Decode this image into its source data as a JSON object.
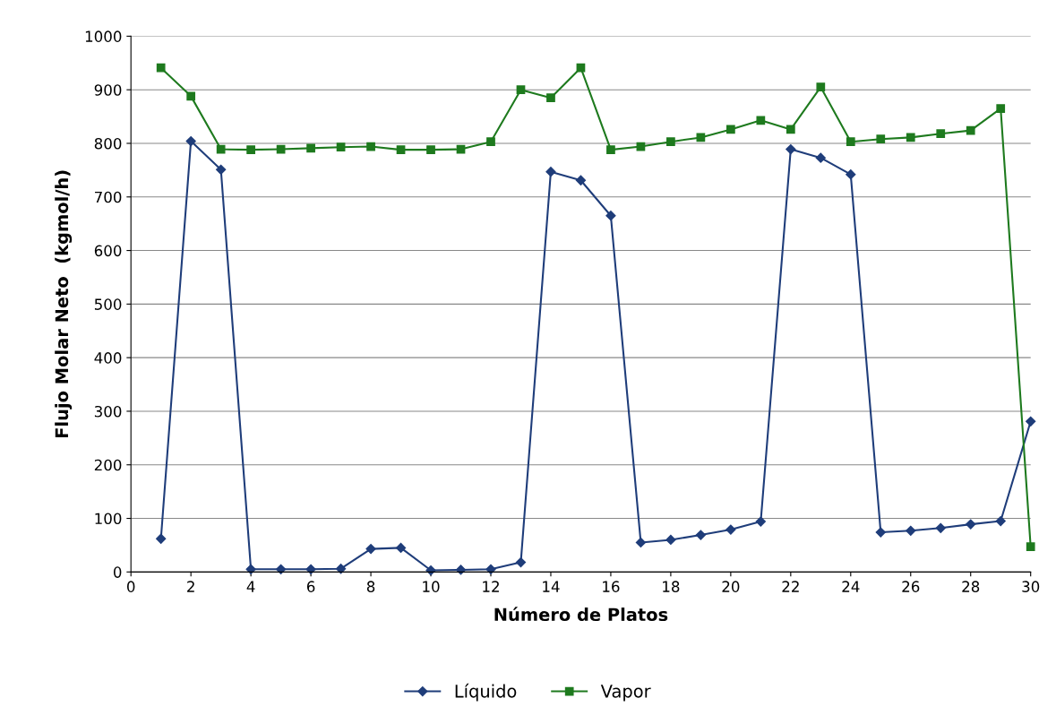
{
  "chart_data": {
    "type": "line",
    "xlabel": "Número de Platos",
    "ylabel": "Flujo Molar Neto  (kgmol/h)",
    "xlim": [
      0,
      30
    ],
    "xticks": [
      0,
      2,
      4,
      6,
      8,
      10,
      12,
      14,
      16,
      18,
      20,
      22,
      24,
      26,
      28,
      30
    ],
    "ylim": [
      0,
      1000
    ],
    "yticks": [
      0,
      100,
      200,
      300,
      400,
      500,
      600,
      700,
      800,
      900,
      1000
    ],
    "grid": "y",
    "legend": "bottom",
    "line_style": "solid",
    "x": [
      1,
      2,
      3,
      4,
      5,
      6,
      7,
      8,
      9,
      10,
      11,
      12,
      13,
      14,
      15,
      16,
      17,
      18,
      19,
      20,
      21,
      22,
      23,
      24,
      25,
      26,
      27,
      28,
      29,
      30
    ],
    "series": [
      {
        "name": "Líquido",
        "color": "#1f3d7a",
        "marker": "diamond",
        "values": [
          62,
          804,
          751,
          5,
          5,
          5,
          6,
          43,
          45,
          3,
          4,
          5,
          18,
          747,
          731,
          665,
          55,
          60,
          69,
          79,
          94,
          789,
          773,
          742,
          74,
          77,
          82,
          89,
          95,
          281
        ]
      },
      {
        "name": "Vapor",
        "color": "#1e7a1e",
        "marker": "square",
        "values": [
          941,
          888,
          789,
          788,
          789,
          791,
          793,
          794,
          788,
          788,
          789,
          803,
          900,
          885,
          941,
          788,
          794,
          803,
          811,
          826,
          843,
          826,
          905,
          803,
          808,
          811,
          818,
          824,
          865,
          47
        ]
      }
    ]
  }
}
